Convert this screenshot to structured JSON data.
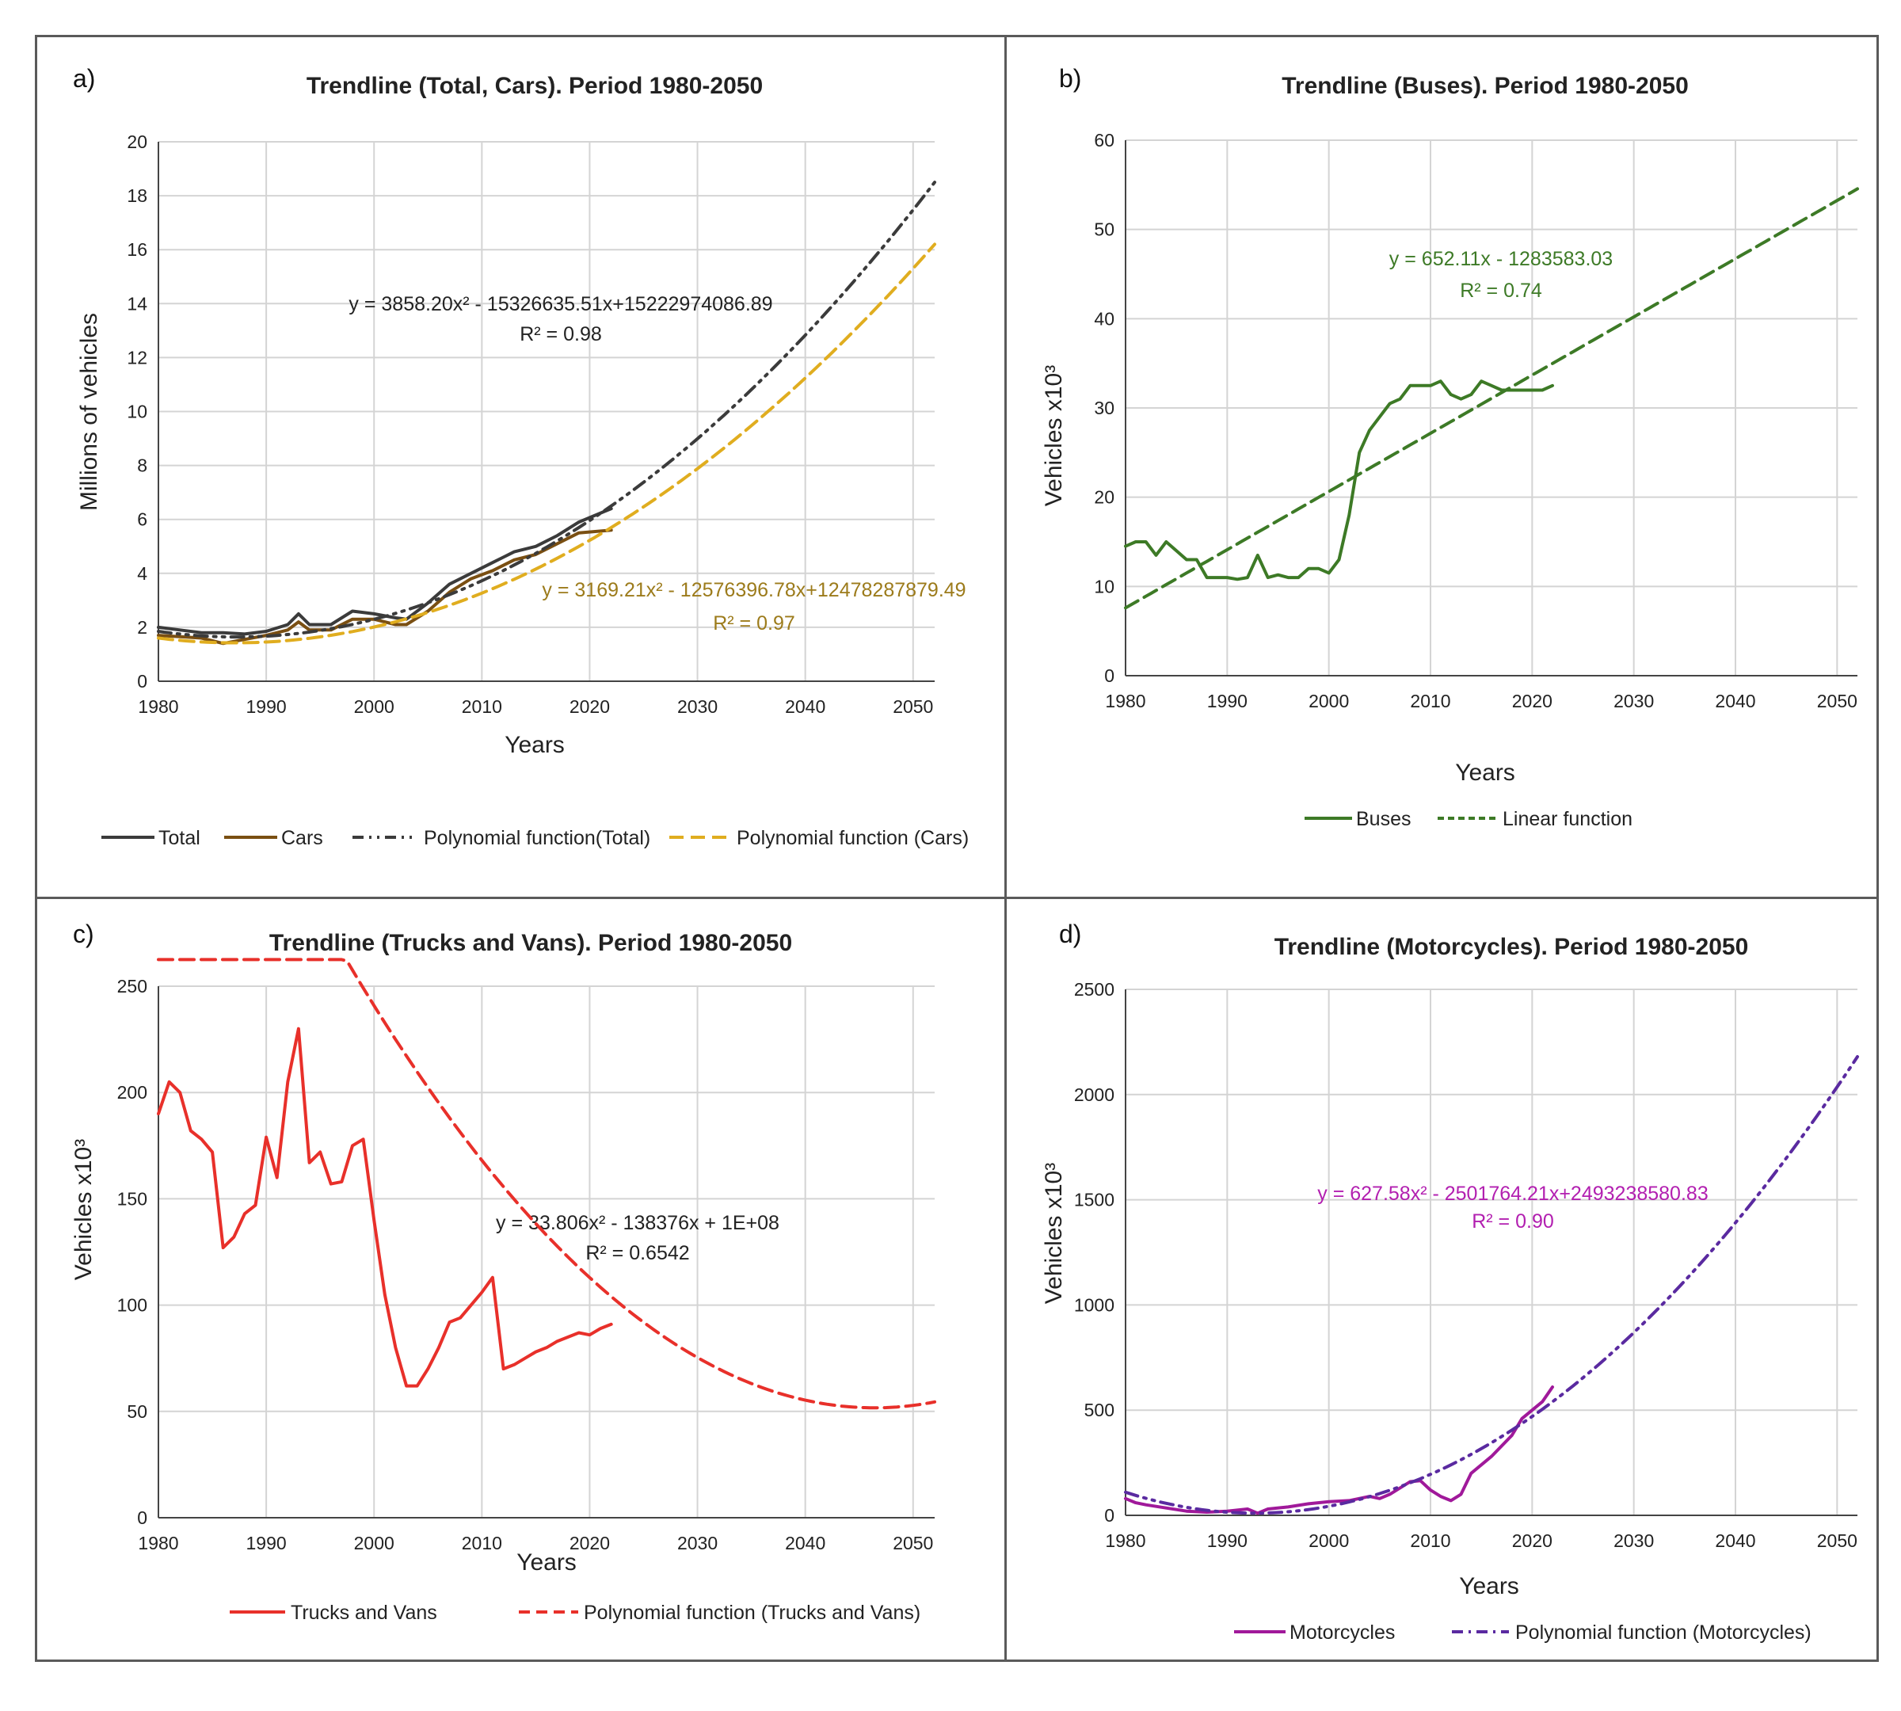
{
  "chart_data": [
    {
      "id": "a",
      "letter": "a)",
      "type": "line",
      "title": "Trendline (Total, Cars). Period 1980-2050",
      "xlabel": "Years",
      "ylabel": "Millions of vehicles",
      "xlim": [
        1980,
        2052
      ],
      "ylim": [
        0,
        20
      ],
      "xticks": [
        1980,
        1990,
        2000,
        2010,
        2020,
        2030,
        2040,
        2050
      ],
      "yticks": [
        0,
        2,
        4,
        6,
        8,
        10,
        12,
        14,
        16,
        18,
        20
      ],
      "series": [
        {
          "name": "Total",
          "color": "#3b3b3b",
          "style": "solid",
          "x": [
            1980,
            1982,
            1984,
            1986,
            1988,
            1990,
            1992,
            1993,
            1994,
            1996,
            1998,
            2000,
            2002,
            2003,
            2005,
            2007,
            2009,
            2011,
            2013,
            2015,
            2017,
            2019,
            2022
          ],
          "y": [
            2.0,
            1.9,
            1.8,
            1.8,
            1.75,
            1.85,
            2.1,
            2.5,
            2.1,
            2.1,
            2.6,
            2.5,
            2.35,
            2.3,
            2.9,
            3.6,
            4.0,
            4.4,
            4.8,
            5.0,
            5.4,
            5.9,
            6.4
          ]
        },
        {
          "name": "Cars",
          "color": "#7a4f12",
          "style": "solid",
          "x": [
            1980,
            1982,
            1984,
            1986,
            1988,
            1990,
            1992,
            1993,
            1994,
            1996,
            1998,
            2000,
            2002,
            2003,
            2005,
            2007,
            2009,
            2011,
            2013,
            2015,
            2017,
            2019,
            2022
          ],
          "y": [
            1.7,
            1.65,
            1.6,
            1.4,
            1.55,
            1.7,
            1.9,
            2.2,
            1.9,
            1.9,
            2.3,
            2.3,
            2.1,
            2.1,
            2.6,
            3.3,
            3.8,
            4.1,
            4.5,
            4.7,
            5.1,
            5.5,
            5.6
          ]
        },
        {
          "name": "Polynomial function(Total)",
          "color": "#3b3b3b",
          "style": "dashdot",
          "fit": "total",
          "x0": 1980,
          "x1": 2052
        },
        {
          "name": "Polynomial function (Cars)",
          "color": "#e0ad1f",
          "style": "dash",
          "fit": "cars",
          "x0": 1980,
          "x1": 2052
        }
      ],
      "annotations": [
        {
          "text": "y = 3858.20x² - 15326635.51x+15222974086.89",
          "color": "#222222"
        },
        {
          "text": "R² = 0.98",
          "color": "#222222"
        },
        {
          "text": "y = 3169.21x² - 12576396.78x+12478287879.49",
          "color": "#9c7b1b"
        },
        {
          "text": "R² = 0.97",
          "color": "#9c7b1b"
        }
      ],
      "legend": [
        "Total",
        "Cars",
        "Polynomial function(Total)",
        "Polynomial function (Cars)"
      ]
    },
    {
      "id": "b",
      "letter": "b)",
      "type": "line",
      "title": "Trendline (Buses). Period 1980-2050",
      "xlabel": "Years",
      "ylabel": "Vehicles  x10³",
      "xlim": [
        1980,
        2052
      ],
      "ylim": [
        0,
        60
      ],
      "xticks": [
        1980,
        1990,
        2000,
        2010,
        2020,
        2030,
        2040,
        2050
      ],
      "yticks": [
        0,
        10,
        20,
        30,
        40,
        50,
        60
      ],
      "series": [
        {
          "name": "Buses",
          "color": "#3d7a26",
          "style": "solid",
          "x": [
            1980,
            1981,
            1982,
            1983,
            1984,
            1985,
            1986,
            1987,
            1988,
            1989,
            1990,
            1991,
            1992,
            1993,
            1994,
            1995,
            1996,
            1997,
            1998,
            1999,
            2000,
            2001,
            2002,
            2003,
            2004,
            2005,
            2006,
            2007,
            2008,
            2009,
            2010,
            2011,
            2012,
            2013,
            2014,
            2015,
            2016,
            2017,
            2018,
            2019,
            2020,
            2021,
            2022
          ],
          "y": [
            14.5,
            15,
            15,
            13.5,
            15,
            14,
            13,
            13,
            11,
            11,
            11,
            10.8,
            11,
            13.5,
            11,
            11.3,
            11,
            11,
            12,
            12,
            11.5,
            13,
            18,
            25,
            27.5,
            29,
            30.5,
            31,
            32.5,
            32.5,
            32.5,
            33,
            31.5,
            31,
            31.5,
            33,
            32.5,
            32,
            32,
            32,
            32,
            32,
            32.5
          ]
        },
        {
          "name": "Linear function",
          "color": "#3d7a26",
          "style": "dash",
          "linear": [
            652.11,
            -1283583.03
          ],
          "x0": 1980,
          "x1": 2052
        }
      ],
      "annotations": [
        {
          "text": "y = 652.11x - 1283583.03",
          "color": "#3d7a26"
        },
        {
          "text": "R² = 0.74",
          "color": "#3d7a26"
        }
      ],
      "legend": [
        "Buses",
        "Linear function"
      ]
    },
    {
      "id": "c",
      "letter": "c)",
      "type": "line",
      "title": "Trendline (Trucks and Vans). Period 1980-2050",
      "xlabel": "Years",
      "ylabel": "Vehicles x10³",
      "xlim": [
        1980,
        2052
      ],
      "ylim": [
        0,
        250
      ],
      "xticks": [
        1980,
        1990,
        2000,
        2010,
        2020,
        2030,
        2040,
        2050
      ],
      "yticks": [
        0,
        50,
        100,
        150,
        200,
        250
      ],
      "series": [
        {
          "name": "Trucks and Vans",
          "color": "#e8302a",
          "style": "solid",
          "x": [
            1980,
            1981,
            1982,
            1983,
            1984,
            1985,
            1986,
            1987,
            1988,
            1989,
            1990,
            1991,
            1992,
            1993,
            1994,
            1995,
            1996,
            1997,
            1998,
            1999,
            2000,
            2001,
            2002,
            2003,
            2004,
            2005,
            2006,
            2007,
            2008,
            2009,
            2010,
            2011,
            2012,
            2013,
            2014,
            2015,
            2016,
            2017,
            2018,
            2019,
            2020,
            2021,
            2022
          ],
          "y": [
            190,
            205,
            200,
            182,
            178,
            172,
            127,
            132,
            143,
            147,
            179,
            160,
            205,
            230,
            167,
            172,
            157,
            158,
            175,
            178,
            140,
            105,
            80,
            62,
            62,
            70,
            80,
            92,
            94,
            100,
            106,
            113,
            70,
            72,
            75,
            78,
            80,
            83,
            85,
            87,
            86,
            89,
            91
          ]
        },
        {
          "name": "Polynomial function (Trucks and Vans)",
          "color": "#e8302a",
          "style": "dash",
          "quad": [
            33.806,
            2046.4,
            51.7
          ],
          "x0": 1980,
          "x1": 2052
        }
      ],
      "annotations": [
        {
          "text": "y = 33.806x² - 138376x + 1E+08",
          "color": "#222222"
        },
        {
          "text": "R² = 0.6542",
          "color": "#222222"
        }
      ],
      "legend": [
        "Trucks and Vans",
        "Polynomial function (Trucks and Vans)"
      ]
    },
    {
      "id": "d",
      "letter": "d)",
      "type": "line",
      "title": "Trendline (Motorcycles). Period 1980-2050",
      "xlabel": "Years",
      "ylabel": "Vehicles  x10³",
      "xlim": [
        1980,
        2052
      ],
      "ylim": [
        0,
        2500
      ],
      "xticks": [
        1980,
        1990,
        2000,
        2010,
        2020,
        2030,
        2040,
        2050
      ],
      "yticks": [
        0,
        500,
        1000,
        1500,
        2000,
        2500
      ],
      "series": [
        {
          "name": "Motorcycles",
          "color": "#a0199a",
          "style": "solid",
          "x": [
            1980,
            1981,
            1982,
            1984,
            1986,
            1988,
            1990,
            1992,
            1993,
            1994,
            1996,
            1998,
            2000,
            2002,
            2004,
            2005,
            2006,
            2008,
            2009,
            2010,
            2011,
            2012,
            2013,
            2014,
            2016,
            2018,
            2019,
            2020,
            2021,
            2022
          ],
          "y": [
            80,
            60,
            50,
            35,
            20,
            15,
            20,
            30,
            10,
            30,
            40,
            55,
            65,
            70,
            90,
            80,
            100,
            160,
            165,
            120,
            90,
            70,
            100,
            200,
            280,
            380,
            460,
            500,
            540,
            610
          ]
        },
        {
          "name": "Polynomial function (Motorcycles)",
          "color": "#5a2aa0",
          "style": "dashdot",
          "quad": [
            627.58,
            1993.2,
            0
          ],
          "x0": 1980,
          "x1": 2052
        }
      ],
      "annotations": [
        {
          "text": "y = 627.58x² - 2501764.21x+2493238580.83",
          "color": "#b21fb0"
        },
        {
          "text": "R² = 0.90",
          "color": "#b21fb0"
        }
      ],
      "legend": [
        "Motorcycles",
        "Polynomial function (Motorcycles)"
      ]
    }
  ]
}
